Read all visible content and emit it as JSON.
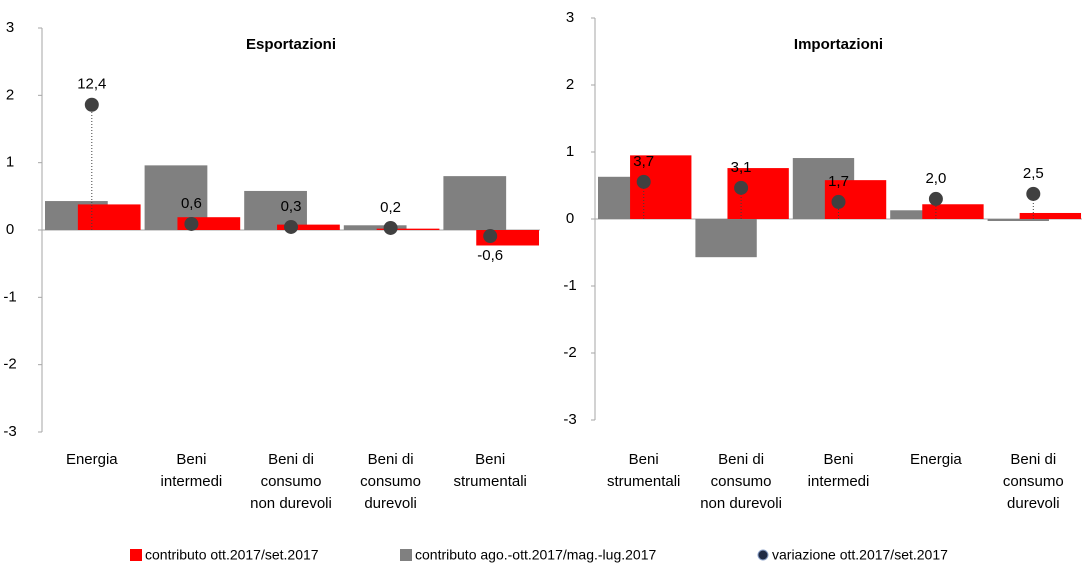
{
  "chart_data": [
    {
      "type": "bar",
      "title": "Esportazioni",
      "categories": [
        [
          "Energia"
        ],
        [
          "Beni",
          "intermedi"
        ],
        [
          "Beni di",
          "consumo",
          "non durevoli"
        ],
        [
          "Beni di",
          "consumo",
          "durevoli"
        ],
        [
          "Beni",
          "strumentali"
        ]
      ],
      "ylim": [
        -3,
        3
      ],
      "yticks": [
        -3,
        -2,
        -1,
        0,
        1,
        2,
        3
      ],
      "y2lim": [
        -20,
        20
      ],
      "series": [
        {
          "name": "contributo ott.2017/set.2017",
          "color": "#ff0000",
          "values": [
            0.38,
            0.19,
            0.08,
            0.02,
            -0.23
          ]
        },
        {
          "name": "contributo ago.-ott.2017/mag.-lug.2017",
          "color": "#808080",
          "values": [
            0.43,
            0.96,
            0.58,
            0.07,
            0.8
          ]
        },
        {
          "name": "variazione ott.2017/set.2017",
          "color": "#404040",
          "type": "dot",
          "axis": "y2",
          "values": [
            12.4,
            0.6,
            0.3,
            0.2,
            -0.6
          ],
          "value_labels": [
            "12,4",
            "0,6",
            "0,3",
            "0,2",
            "-0,6"
          ]
        }
      ]
    },
    {
      "type": "bar",
      "title": "Importazioni",
      "categories": [
        [
          "Beni",
          "strumentali"
        ],
        [
          "Beni di",
          "consumo",
          "non durevoli"
        ],
        [
          "Beni",
          "intermedi"
        ],
        [
          "Energia"
        ],
        [
          "Beni di",
          "consumo",
          "durevoli"
        ]
      ],
      "ylim": [
        -3,
        3
      ],
      "yticks": [
        -3,
        -2,
        -1,
        0,
        1,
        2,
        3
      ],
      "y2lim": [
        -20,
        20
      ],
      "series": [
        {
          "color": "#ff0000",
          "values": [
            0.95,
            0.76,
            0.58,
            0.22,
            0.09
          ]
        },
        {
          "color": "#808080",
          "values": [
            0.63,
            -0.57,
            0.91,
            0.13,
            -0.03
          ]
        },
        {
          "color": "#404040",
          "type": "dot",
          "axis": "y2",
          "values": [
            3.7,
            3.1,
            1.7,
            2.0,
            2.5
          ],
          "value_labels": [
            "3,7",
            "3,1",
            "1,7",
            "2,0",
            "2,5"
          ]
        }
      ]
    }
  ]
}
